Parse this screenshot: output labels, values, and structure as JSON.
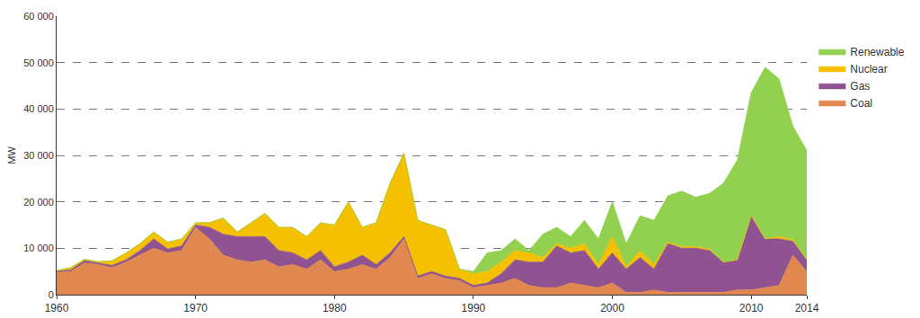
{
  "chart_data": {
    "type": "area",
    "stacked": true,
    "y_label": "MW",
    "x": [
      1960,
      1961,
      1962,
      1963,
      1964,
      1965,
      1966,
      1967,
      1968,
      1969,
      1970,
      1971,
      1972,
      1973,
      1974,
      1975,
      1976,
      1977,
      1978,
      1979,
      1980,
      1981,
      1982,
      1983,
      1984,
      1985,
      1986,
      1987,
      1988,
      1989,
      1990,
      1991,
      1992,
      1993,
      1994,
      1995,
      1996,
      1997,
      1998,
      1999,
      2000,
      2001,
      2002,
      2003,
      2004,
      2005,
      2006,
      2007,
      2008,
      2009,
      2010,
      2011,
      2012,
      2013,
      2014
    ],
    "xlim": [
      1960,
      2014
    ],
    "xticks": [
      1960,
      1970,
      1980,
      1990,
      2000,
      2010,
      2014
    ],
    "ylim": [
      0,
      60000
    ],
    "yticks": [
      0,
      {
        "value": 10000,
        "label": "10 000"
      },
      {
        "value": 20000,
        "label": "20 000"
      },
      {
        "value": 30000,
        "label": "30 000"
      },
      {
        "value": 40000,
        "label": "40 000"
      },
      {
        "value": 50000,
        "label": "50 000"
      },
      {
        "value": 60000,
        "label": "60 000"
      }
    ],
    "grid": true,
    "legend": "right",
    "series": [
      {
        "name": "Coal",
        "color": "#e0884f",
        "values": [
          4800,
          5000,
          6800,
          6500,
          5800,
          7000,
          8500,
          10000,
          9000,
          9500,
          14500,
          12000,
          8500,
          7500,
          7000,
          7500,
          6000,
          6500,
          5500,
          7500,
          5000,
          5500,
          6500,
          5500,
          8000,
          12000,
          3500,
          4500,
          3500,
          3000,
          1500,
          2000,
          2500,
          3500,
          2000,
          1500,
          1500,
          2500,
          2000,
          1500,
          2500,
          500,
          500,
          1000,
          500,
          500,
          500,
          500,
          500,
          1000,
          1000,
          1500,
          2000,
          8500,
          5000
        ]
      },
      {
        "name": "Gas",
        "color": "#8e5390",
        "values": [
          200,
          300,
          500,
          300,
          500,
          500,
          1000,
          2000,
          800,
          1000,
          500,
          2500,
          4500,
          5000,
          5500,
          5000,
          3500,
          2500,
          2000,
          2000,
          1000,
          1500,
          2000,
          1000,
          1000,
          500,
          500,
          500,
          500,
          500,
          500,
          500,
          2000,
          4000,
          5000,
          5500,
          9000,
          6500,
          7500,
          4000,
          6500,
          5000,
          7500,
          4500,
          10500,
          9500,
          9500,
          9000,
          6500,
          6500,
          16000,
          10500,
          10000,
          3000,
          2500
        ]
      },
      {
        "name": "Nuclear",
        "color": "#f5c000",
        "values": [
          200,
          500,
          300,
          300,
          1000,
          1500,
          1500,
          1500,
          1500,
          1500,
          500,
          1000,
          3500,
          1000,
          3000,
          5000,
          5000,
          5500,
          5000,
          6000,
          9000,
          13000,
          6000,
          9000,
          15000,
          18000,
          12000,
          10000,
          10000,
          2000,
          2500,
          2500,
          2500,
          2000,
          2000,
          1000,
          500,
          1000,
          1500,
          1000,
          3500,
          500,
          1500,
          1000,
          300,
          300,
          300,
          300,
          0,
          0,
          0,
          0,
          500,
          300,
          0
        ]
      },
      {
        "name": "Renewable",
        "color": "#92d050",
        "values": [
          0,
          0,
          0,
          0,
          0,
          0,
          0,
          0,
          0,
          0,
          0,
          0,
          0,
          0,
          0,
          0,
          0,
          0,
          0,
          0,
          0,
          0,
          0,
          0,
          0,
          0,
          0,
          0,
          0,
          0,
          500,
          4000,
          2500,
          2500,
          500,
          5000,
          3500,
          2500,
          5000,
          5500,
          7500,
          5000,
          7500,
          9500,
          10000,
          12000,
          10700,
          12000,
          17000,
          21500,
          26500,
          37000,
          34000,
          24500,
          23500
        ]
      }
    ]
  }
}
